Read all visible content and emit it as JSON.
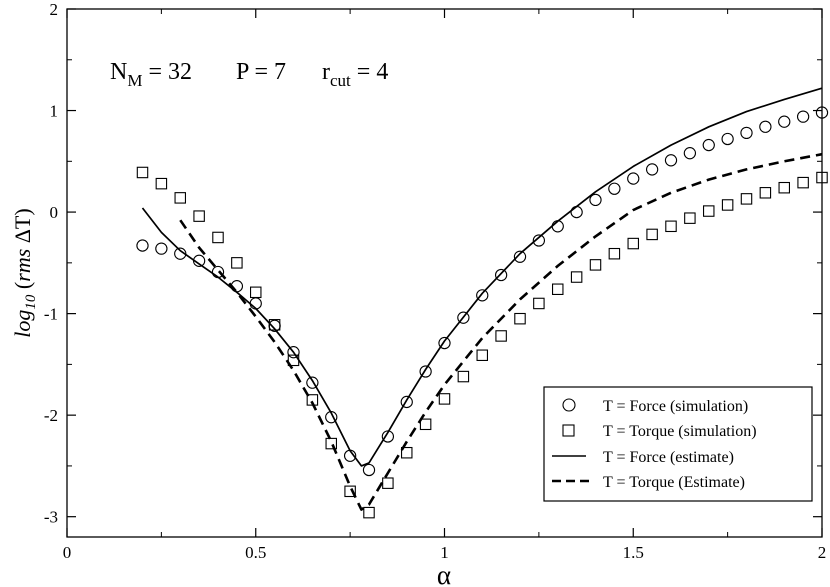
{
  "chart_data": {
    "type": "line",
    "xlabel": "α",
    "ylabel": {
      "prefix": "log",
      "subscript": "10",
      "paren_open": " (",
      "italic": "rms ",
      "rest": "ΔT)"
    },
    "xlim": [
      0,
      2
    ],
    "ylim": [
      -3.2,
      2
    ],
    "x_ticks": [
      {
        "value": 0,
        "label": "0"
      },
      {
        "value": 0.5,
        "label": "0.5"
      },
      {
        "value": 1,
        "label": "1"
      },
      {
        "value": 1.5,
        "label": "1.5"
      },
      {
        "value": 2,
        "label": "2"
      }
    ],
    "y_ticks": [
      {
        "value": -3,
        "label": "-3"
      },
      {
        "value": -2,
        "label": "-2"
      },
      {
        "value": -1,
        "label": "-1"
      },
      {
        "value": 0,
        "label": "0"
      },
      {
        "value": 1,
        "label": "1"
      },
      {
        "value": 2,
        "label": "2"
      }
    ],
    "annotation": {
      "nm_base": "N",
      "nm_sub": "M",
      "nm_value": " = 32",
      "p_text": "P = 7",
      "r_base": "r",
      "r_sub": "cut",
      "r_value": " =  4"
    },
    "legend_position": "bottom-right",
    "series": [
      {
        "name": "T = Force (simulation)",
        "style": "circle",
        "x": [
          0.2,
          0.25,
          0.3,
          0.35,
          0.4,
          0.45,
          0.5,
          0.55,
          0.6,
          0.65,
          0.7,
          0.75,
          0.8,
          0.85,
          0.9,
          0.95,
          1.0,
          1.05,
          1.1,
          1.15,
          1.2,
          1.25,
          1.3,
          1.35,
          1.4,
          1.45,
          1.5,
          1.55,
          1.6,
          1.65,
          1.7,
          1.75,
          1.8,
          1.85,
          1.9,
          1.95,
          2.0
        ],
        "y": [
          -0.33,
          -0.36,
          -0.41,
          -0.48,
          -0.59,
          -0.73,
          -0.9,
          -1.12,
          -1.38,
          -1.68,
          -2.02,
          -2.4,
          -2.54,
          -2.21,
          -1.87,
          -1.57,
          -1.29,
          -1.04,
          -0.82,
          -0.62,
          -0.44,
          -0.28,
          -0.14,
          0.0,
          0.12,
          0.23,
          0.33,
          0.42,
          0.51,
          0.58,
          0.66,
          0.72,
          0.78,
          0.84,
          0.89,
          0.94,
          0.98
        ]
      },
      {
        "name": "T = Torque (simulation)",
        "style": "square",
        "x": [
          0.2,
          0.25,
          0.3,
          0.35,
          0.4,
          0.45,
          0.5,
          0.55,
          0.6,
          0.65,
          0.7,
          0.75,
          0.8,
          0.85,
          0.9,
          0.95,
          1.0,
          1.05,
          1.1,
          1.15,
          1.2,
          1.25,
          1.3,
          1.35,
          1.4,
          1.45,
          1.5,
          1.55,
          1.6,
          1.65,
          1.7,
          1.75,
          1.8,
          1.85,
          1.9,
          1.95,
          2.0
        ],
        "y": [
          0.39,
          0.28,
          0.14,
          -0.04,
          -0.25,
          -0.5,
          -0.79,
          -1.11,
          -1.46,
          -1.85,
          -2.28,
          -2.75,
          -2.96,
          -2.67,
          -2.37,
          -2.09,
          -1.84,
          -1.62,
          -1.41,
          -1.22,
          -1.05,
          -0.9,
          -0.76,
          -0.64,
          -0.52,
          -0.41,
          -0.31,
          -0.22,
          -0.14,
          -0.06,
          0.01,
          0.07,
          0.13,
          0.19,
          0.24,
          0.29,
          0.34
        ]
      },
      {
        "name": "T = Force (estimate)",
        "style": "solid",
        "x": [
          0.2,
          0.25,
          0.3,
          0.35,
          0.4,
          0.45,
          0.5,
          0.55,
          0.6,
          0.65,
          0.7,
          0.75,
          0.78,
          0.8,
          0.85,
          0.9,
          0.95,
          1.0,
          1.1,
          1.2,
          1.3,
          1.4,
          1.5,
          1.6,
          1.7,
          1.8,
          1.9,
          2.0
        ],
        "y": [
          0.04,
          -0.2,
          -0.38,
          -0.51,
          -0.64,
          -0.79,
          -0.95,
          -1.15,
          -1.38,
          -1.66,
          -1.98,
          -2.35,
          -2.5,
          -2.47,
          -2.17,
          -1.85,
          -1.55,
          -1.27,
          -0.8,
          -0.41,
          -0.09,
          0.2,
          0.45,
          0.66,
          0.84,
          0.99,
          1.11,
          1.22
        ]
      },
      {
        "name": "T = Torque (Estimate)",
        "style": "dashed",
        "x": [
          0.3,
          0.35,
          0.4,
          0.45,
          0.5,
          0.55,
          0.6,
          0.65,
          0.7,
          0.75,
          0.78,
          0.8,
          0.85,
          0.9,
          0.95,
          1.0,
          1.1,
          1.2,
          1.3,
          1.4,
          1.5,
          1.6,
          1.7,
          1.8,
          1.9,
          2.0
        ],
        "y": [
          -0.08,
          -0.35,
          -0.57,
          -0.79,
          -1.03,
          -1.28,
          -1.56,
          -1.88,
          -2.26,
          -2.7,
          -2.93,
          -2.88,
          -2.57,
          -2.26,
          -1.97,
          -1.7,
          -1.24,
          -0.86,
          -0.53,
          -0.24,
          0.02,
          0.19,
          0.32,
          0.42,
          0.5,
          0.57
        ]
      }
    ]
  }
}
